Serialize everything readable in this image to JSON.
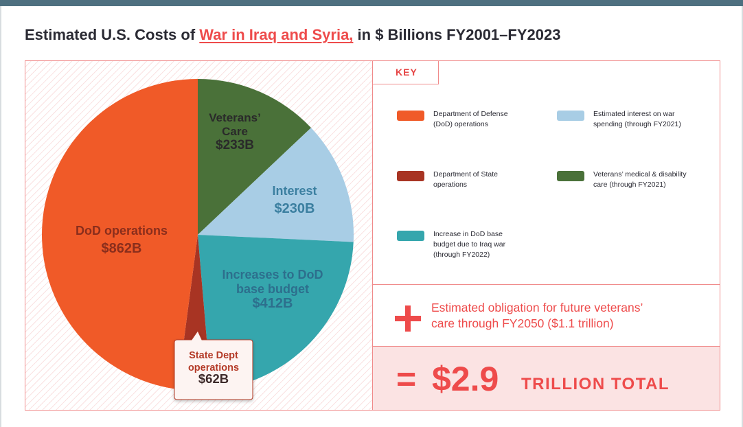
{
  "title": {
    "before": "Estimated U.S. Costs of ",
    "link": "War in Iraq and Syria,",
    "after": " in $ Billions FY2001–FY2023"
  },
  "colors": {
    "dod_operations": "#f05a28",
    "state_dept": "#a83423",
    "dod_base_budget": "#35a6ad",
    "interest": "#a8cde5",
    "veterans_care": "#4a7139",
    "accent": "#ee4b4b",
    "header_bar": "#4e7080"
  },
  "chart_data": {
    "type": "pie",
    "title": "Estimated U.S. Costs of War in Iraq and Syria, in $ Billions FY2001–FY2023",
    "unit": "$ Billions",
    "slices": [
      {
        "key": "veterans_care",
        "label": [
          "Veterans’",
          "Care"
        ],
        "value": 233,
        "value_label": "$233B",
        "color": "#4a7139",
        "label_color": "#2a2a2a",
        "value_color": "#2a2a2a"
      },
      {
        "key": "interest",
        "label": [
          "Interest"
        ],
        "value": 230,
        "value_label": "$230B",
        "color": "#a8cde5",
        "label_color": "#3b7fa0",
        "value_color": "#3b7fa0"
      },
      {
        "key": "dod_base_budget",
        "label": [
          "Increases to DoD",
          "base budget"
        ],
        "value": 412,
        "value_label": "$412B",
        "color": "#35a6ad",
        "label_color": "#2d6f8d",
        "value_color": "#2d6f8d"
      },
      {
        "key": "state_dept",
        "label": [
          "State Dept",
          "operations"
        ],
        "value": 62,
        "value_label": "$62B",
        "color": "#a83423",
        "label_color": "#b43b28",
        "value_color": "#3d2a2a",
        "callout": true
      },
      {
        "key": "dod_operations",
        "label": [
          "DoD operations"
        ],
        "value": 862,
        "value_label": "$862B",
        "color": "#f05a28",
        "label_color": "#8a2e1c",
        "value_color": "#8a2e1c"
      }
    ]
  },
  "key": {
    "title": "KEY",
    "items": [
      {
        "text": [
          "Department of Defense",
          "(DoD) operations"
        ],
        "color": "#f05a28"
      },
      {
        "text": [
          "Estimated interest on war",
          "spending (through FY2021)"
        ],
        "color": "#a8cde5"
      },
      {
        "text": [
          "Department of State",
          "operations"
        ],
        "color": "#a83423"
      },
      {
        "text": [
          "Veterans’ medical & disability",
          "care (through FY2021)"
        ],
        "color": "#4a7139"
      },
      {
        "text": [
          "Increase in DoD base",
          "budget due to Iraq war",
          "(through FY2022)"
        ],
        "color": "#35a6ad"
      }
    ]
  },
  "future": {
    "lines": [
      "Estimated obligation for future veterans’",
      "care through FY2050 ($1.1 trillion)"
    ]
  },
  "total": {
    "equals": "=",
    "amount": "$2.9",
    "label": "TRILLION TOTAL"
  }
}
